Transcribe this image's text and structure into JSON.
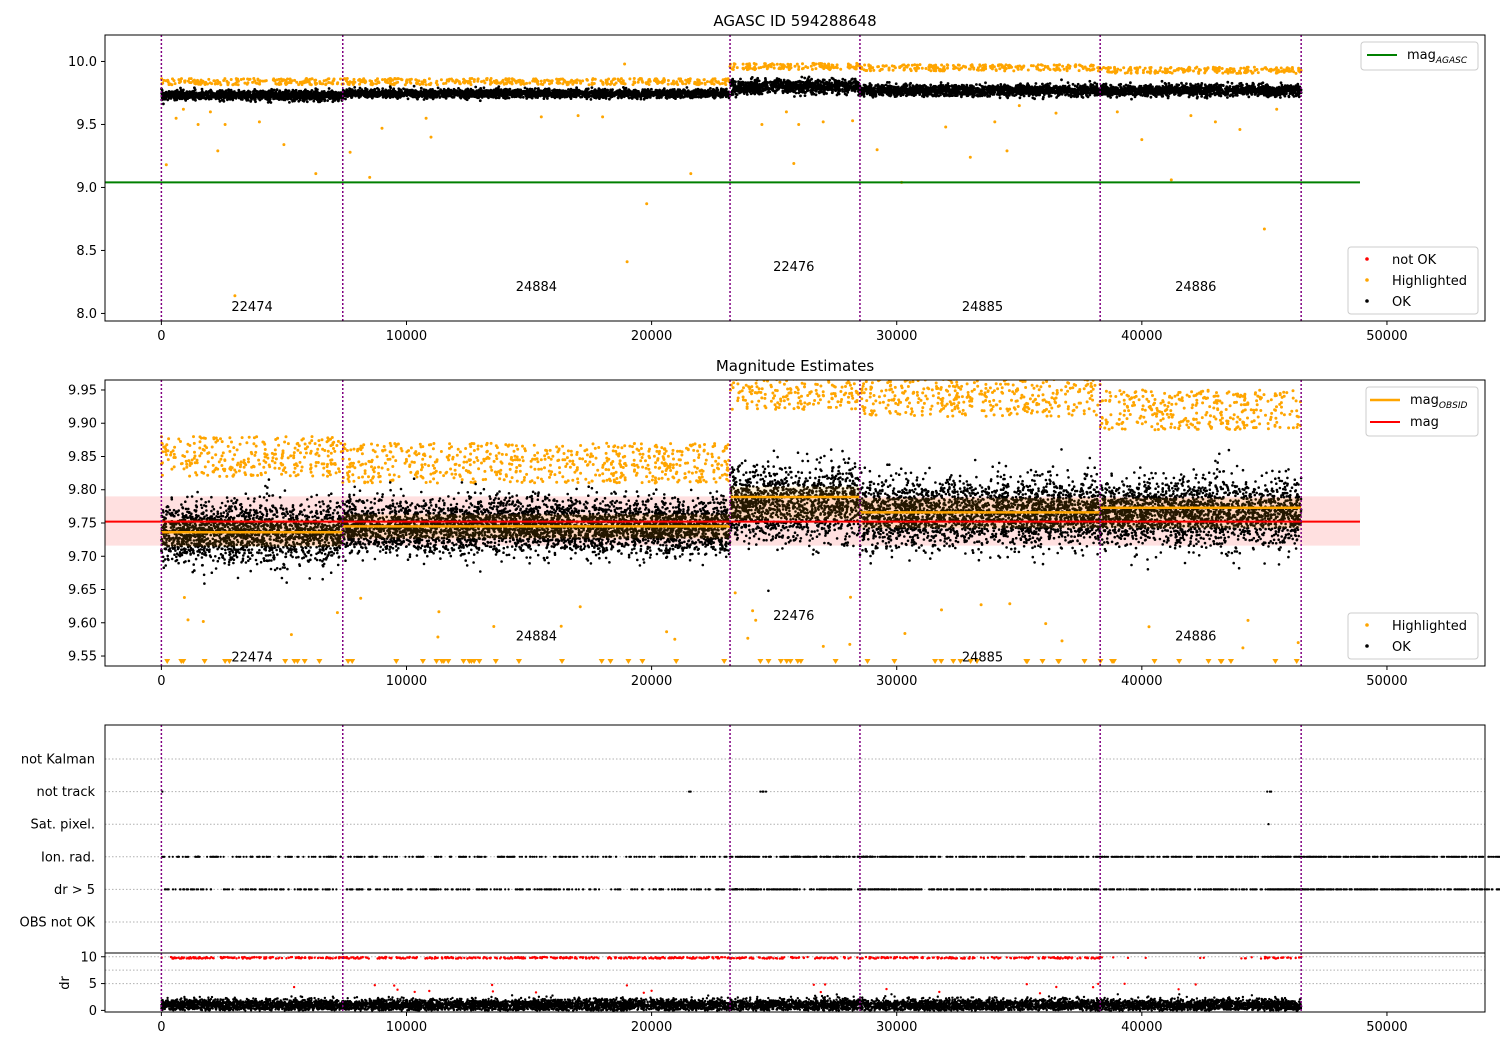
{
  "chart_data": [
    {
      "type": "scatter",
      "title": "AGASC ID 594288648",
      "xlim": [
        -2300,
        54000
      ],
      "ylim": [
        7.94,
        10.21
      ],
      "xticks": [
        0,
        10000,
        20000,
        30000,
        40000,
        50000
      ],
      "yticks": [
        8.0,
        8.5,
        9.0,
        9.5,
        10.0
      ],
      "ytick_labels": [
        "8.0",
        "8.5",
        "9.0",
        "9.5",
        "10.0"
      ],
      "obsid_boundaries": [
        0,
        7400,
        23200,
        28500,
        38300,
        46500
      ],
      "obsid_labels": [
        {
          "label": "22474",
          "x": 3700,
          "y": 8.05
        },
        {
          "label": "24884",
          "x": 15300,
          "y": 8.21
        },
        {
          "label": "22476",
          "x": 25800,
          "y": 8.37
        },
        {
          "label": "24885",
          "x": 33500,
          "y": 8.05
        },
        {
          "label": "24886",
          "x": 42200,
          "y": 8.21
        }
      ],
      "reference_line": {
        "name": "mag_AGASC",
        "y": 9.04,
        "x_range": [
          -2300,
          48900
        ],
        "color": "#008000"
      },
      "series": [
        {
          "name": "not OK",
          "color": "#ff0000"
        },
        {
          "name": "Highlighted",
          "color": "#ffa500"
        },
        {
          "name": "OK",
          "color": "#000000"
        }
      ],
      "segments": [
        {
          "x": [
            0,
            7400
          ],
          "ok_mean": 9.73,
          "ok_spread": 0.035,
          "hl_level": 9.83
        },
        {
          "x": [
            7400,
            23200
          ],
          "ok_mean": 9.745,
          "ok_spread": 0.03,
          "hl_level": 9.83
        },
        {
          "x": [
            23200,
            28500
          ],
          "ok_mean": 9.8,
          "ok_spread": 0.05,
          "hl_level": 9.95
        },
        {
          "x": [
            28500,
            38300
          ],
          "ok_mean": 9.77,
          "ok_spread": 0.04,
          "hl_level": 9.94
        },
        {
          "x": [
            38300,
            46500
          ],
          "ok_mean": 9.77,
          "ok_spread": 0.04,
          "hl_level": 9.92
        }
      ],
      "outliers": [
        [
          200,
          9.18
        ],
        [
          600,
          9.55
        ],
        [
          900,
          9.62
        ],
        [
          1500,
          9.5
        ],
        [
          2000,
          9.6
        ],
        [
          2300,
          9.29
        ],
        [
          2600,
          9.5
        ],
        [
          3000,
          8.14
        ],
        [
          4000,
          9.52
        ],
        [
          5000,
          9.34
        ],
        [
          6300,
          9.11
        ],
        [
          7700,
          9.28
        ],
        [
          8500,
          9.08
        ],
        [
          9000,
          9.47
        ],
        [
          10800,
          9.55
        ],
        [
          11000,
          9.4
        ],
        [
          15500,
          9.56
        ],
        [
          17000,
          9.57
        ],
        [
          18000,
          9.56
        ],
        [
          18900,
          9.98
        ],
        [
          19000,
          8.41
        ],
        [
          19800,
          8.87
        ],
        [
          21600,
          9.11
        ],
        [
          24500,
          9.5
        ],
        [
          25500,
          9.6
        ],
        [
          25800,
          9.19
        ],
        [
          26000,
          9.5
        ],
        [
          27000,
          9.52
        ],
        [
          28200,
          9.53
        ],
        [
          29200,
          9.3
        ],
        [
          30200,
          9.04
        ],
        [
          32000,
          9.48
        ],
        [
          33000,
          9.24
        ],
        [
          34000,
          9.52
        ],
        [
          34500,
          9.29
        ],
        [
          35000,
          9.65
        ],
        [
          36500,
          9.59
        ],
        [
          39000,
          9.6
        ],
        [
          40000,
          9.38
        ],
        [
          41200,
          9.06
        ],
        [
          42000,
          9.57
        ],
        [
          43000,
          9.52
        ],
        [
          44000,
          9.46
        ],
        [
          45000,
          8.67
        ],
        [
          45500,
          9.62
        ]
      ],
      "legends": [
        {
          "placement": "upper-right",
          "entries": [
            "mag_AGASC"
          ]
        },
        {
          "placement": "lower-right",
          "entries": [
            "not OK",
            "Highlighted",
            "OK"
          ]
        }
      ]
    },
    {
      "type": "scatter",
      "title": "Magnitude Estimates",
      "xlim": [
        -2300,
        54000
      ],
      "ylim": [
        9.535,
        9.965
      ],
      "xticks": [
        0,
        10000,
        20000,
        30000,
        40000,
        50000
      ],
      "yticks": [
        9.55,
        9.6,
        9.65,
        9.7,
        9.75,
        9.8,
        9.85,
        9.9,
        9.95
      ],
      "ytick_labels": [
        "9.55",
        "9.60",
        "9.65",
        "9.70",
        "9.75",
        "9.80",
        "9.85",
        "9.90",
        "9.95"
      ],
      "obsid_boundaries": [
        0,
        7400,
        23200,
        28500,
        38300,
        46500
      ],
      "obsid_labels": [
        {
          "label": "22474",
          "x": 3700,
          "y": 9.548
        },
        {
          "label": "24884",
          "x": 15300,
          "y": 9.579
        },
        {
          "label": "22476",
          "x": 25800,
          "y": 9.61
        },
        {
          "label": "24885",
          "x": 33500,
          "y": 9.548
        },
        {
          "label": "24886",
          "x": 42200,
          "y": 9.579
        }
      ],
      "mag_line": {
        "name": "mag",
        "y": 9.752,
        "band": [
          9.716,
          9.79
        ],
        "x_range": [
          -2300,
          48900
        ],
        "color": "#ff0000"
      },
      "mag_obsid": [
        {
          "x": [
            0,
            7400
          ],
          "y": 9.736
        },
        {
          "x": [
            7400,
            23200
          ],
          "y": 9.745
        },
        {
          "x": [
            23200,
            28500
          ],
          "y": 9.789
        },
        {
          "x": [
            28500,
            38300
          ],
          "y": 9.766
        },
        {
          "x": [
            38300,
            46500
          ],
          "y": 9.773
        }
      ],
      "segments": [
        {
          "x": [
            0,
            7400
          ],
          "ok_mean": 9.735,
          "ok_spread": 0.045,
          "hl_level": 9.84
        },
        {
          "x": [
            7400,
            23200
          ],
          "ok_mean": 9.745,
          "ok_spread": 0.04,
          "hl_level": 9.83
        },
        {
          "x": [
            23200,
            28500
          ],
          "ok_mean": 9.78,
          "ok_spread": 0.055,
          "hl_level": 9.94
        },
        {
          "x": [
            28500,
            38300
          ],
          "ok_mean": 9.765,
          "ok_spread": 0.05,
          "hl_level": 9.93
        },
        {
          "x": [
            38300,
            46500
          ],
          "ok_mean": 9.765,
          "ok_spread": 0.05,
          "hl_level": 9.91
        }
      ],
      "series": [
        {
          "name": "Highlighted",
          "color": "#ffa500"
        },
        {
          "name": "OK",
          "color": "#000000"
        },
        {
          "name": "mag_OBSID",
          "color": "#ffa500"
        },
        {
          "name": "mag",
          "color": "#ff0000"
        }
      ],
      "legends": [
        {
          "placement": "upper-right",
          "entries": [
            "mag_OBSID",
            "mag"
          ]
        },
        {
          "placement": "lower-right",
          "entries": [
            "Highlighted",
            "OK"
          ]
        }
      ]
    },
    {
      "type": "scatter",
      "xlim": [
        -2300,
        54000
      ],
      "flag_rows": [
        "not Kalman",
        "not track",
        "Sat. pixel.",
        "Ion. rad.",
        "dr > 5",
        "OBS not OK"
      ],
      "obsid_boundaries": [
        0,
        7400,
        23200,
        28500,
        38300,
        46500
      ],
      "grid": true,
      "flags": {
        "not track": [
          [
            0,
            50
          ],
          [
            21500,
            100
          ],
          [
            24400,
            300
          ],
          [
            45100,
            200
          ]
        ],
        "Sat. pixel.": [
          [
            45100,
            100
          ]
        ],
        "Ion. rad.": [
          [
            0,
            7400
          ],
          [
            7400,
            23200
          ],
          [
            23200,
            28500
          ],
          [
            28500,
            38300
          ],
          [
            41200,
            100
          ],
          [
            45000,
            46500
          ]
        ],
        "dr > 5": [
          [
            0,
            7400
          ],
          [
            7400,
            23200
          ],
          [
            23200,
            28500
          ],
          [
            28500,
            38300
          ],
          [
            41200,
            100
          ],
          [
            45000,
            46500
          ]
        ]
      }
    },
    {
      "type": "scatter",
      "ylabel": "dr",
      "xlim": [
        -2300,
        54000
      ],
      "ylim": [
        -0.3,
        10.7
      ],
      "xticks": [
        0,
        10000,
        20000,
        30000,
        40000,
        50000
      ],
      "yticks": [
        0,
        5,
        10
      ],
      "ytick_labels": [
        "0",
        "5",
        "10"
      ],
      "obsid_boundaries": [
        0,
        7400,
        23200,
        28500,
        38300,
        46500
      ],
      "ok_level": 1.0,
      "capped_level": 9.8
    }
  ]
}
